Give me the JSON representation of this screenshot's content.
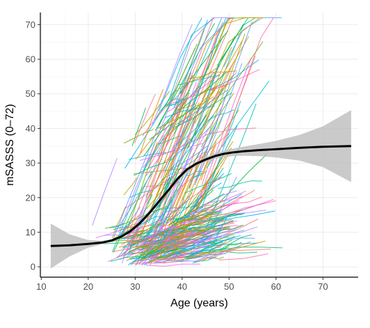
{
  "chart_data": {
    "type": "line",
    "title": "",
    "xlabel": "Age (years)",
    "ylabel": "mSASSS (0–72)",
    "xlim": [
      9.8,
      77.5
    ],
    "ylim": [
      -3,
      73.5
    ],
    "x_ticks": [
      10,
      20,
      30,
      40,
      50,
      60,
      70
    ],
    "y_ticks": [
      0,
      10,
      20,
      30,
      40,
      50,
      60,
      70
    ],
    "grid": true,
    "legend": "none",
    "smooth_fit": {
      "name": "",
      "color": "#000000",
      "x": [
        12,
        16,
        20,
        23,
        25,
        27,
        29,
        31,
        33,
        35,
        37,
        39,
        41,
        43,
        45,
        47,
        49,
        51,
        53,
        56,
        60,
        65,
        70,
        76
      ],
      "y": [
        6.0,
        6.2,
        6.6,
        7.0,
        7.6,
        8.7,
        10.3,
        12.6,
        15.5,
        18.8,
        22.0,
        25.4,
        28.1,
        29.8,
        31.0,
        32.0,
        32.7,
        33.1,
        33.4,
        33.7,
        34.0,
        34.4,
        34.7,
        34.9
      ]
    },
    "confidence_band": {
      "color": "#bdbdbd",
      "x": [
        12,
        16,
        20,
        23,
        25,
        27,
        29,
        31,
        33,
        35,
        37,
        39,
        41,
        43,
        45,
        47,
        49,
        51,
        53,
        56,
        60,
        65,
        70,
        76
      ],
      "lower": [
        -0.5,
        3.0,
        5.5,
        6.5,
        7.2,
        8.3,
        9.9,
        12.1,
        14.9,
        18.2,
        21.4,
        24.8,
        27.5,
        29.2,
        30.3,
        31.2,
        31.8,
        32.0,
        32.1,
        32.0,
        31.6,
        30.7,
        28.8,
        24.5
      ],
      "upper": [
        12.5,
        9.4,
        7.7,
        7.5,
        8.0,
        9.1,
        10.7,
        13.1,
        16.1,
        19.4,
        22.6,
        26.0,
        28.7,
        30.4,
        31.7,
        32.8,
        33.6,
        34.2,
        34.7,
        35.4,
        36.4,
        38.1,
        40.6,
        45.3
      ]
    },
    "individual_trajectories": {
      "count": 520,
      "palette": [
        "#F8766D",
        "#E58700",
        "#C99800",
        "#A3A500",
        "#6BB100",
        "#00BA38",
        "#00BF7D",
        "#00C0AF",
        "#00BCD8",
        "#00B0F6",
        "#619CFF",
        "#B983FF",
        "#E76BF3",
        "#FD61D1",
        "#FF67A4"
      ]
    }
  }
}
